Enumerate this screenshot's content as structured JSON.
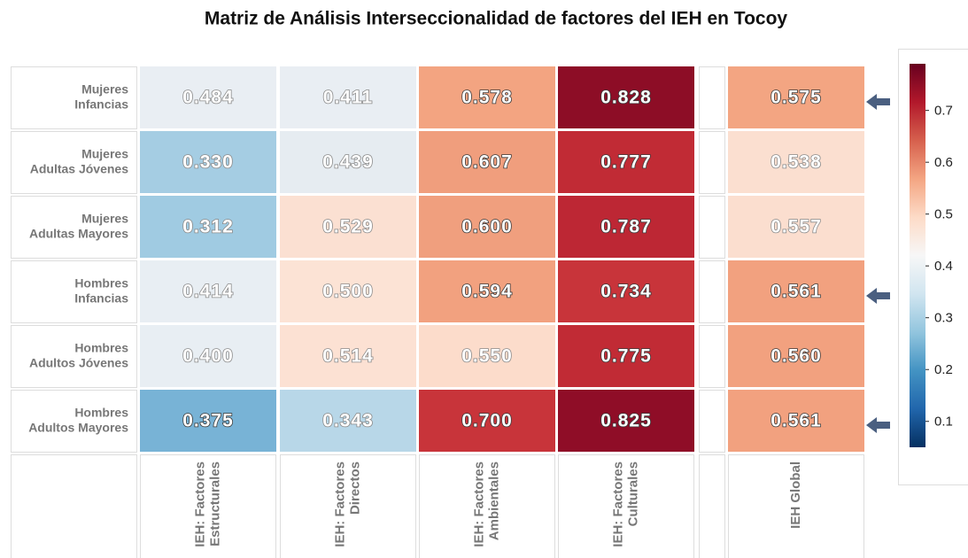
{
  "chart_data": {
    "type": "heatmap",
    "title": "Matriz de Análisis Interseccionalidad de factores del IEH en Tocoy",
    "rows": [
      [
        "Mujeres",
        "Infancias"
      ],
      [
        "Mujeres",
        "Adultas Jóvenes"
      ],
      [
        "Mujeres",
        "Adultas Mayores"
      ],
      [
        "Hombres",
        "Infancias"
      ],
      [
        "Hombres",
        "Adultos Jóvenes"
      ],
      [
        "Hombres",
        "Adultos Mayores"
      ]
    ],
    "columns": [
      [
        "IEH: Factores",
        "Estructurales"
      ],
      [
        "IEH: Factores",
        "Directos"
      ],
      [
        "IEH: Factores",
        "Ambientales"
      ],
      [
        "IEH: Factores",
        "Culturales"
      ],
      [
        "IEH Global"
      ]
    ],
    "values": [
      [
        0.484,
        0.411,
        0.578,
        0.828,
        0.575
      ],
      [
        0.33,
        0.439,
        0.607,
        0.777,
        0.538
      ],
      [
        0.312,
        0.529,
        0.6,
        0.787,
        0.557
      ],
      [
        0.414,
        0.5,
        0.594,
        0.734,
        0.561
      ],
      [
        0.4,
        0.514,
        0.55,
        0.775,
        0.56
      ],
      [
        0.375,
        0.343,
        0.7,
        0.825,
        0.561
      ]
    ],
    "value_labels": [
      [
        "0.484",
        "0.411",
        "0.578",
        "0.828",
        "0.575"
      ],
      [
        "0.330",
        "0.439",
        "0.607",
        "0.777",
        "0.538"
      ],
      [
        "0.312",
        "0.529",
        "0.600",
        "0.787",
        "0.557"
      ],
      [
        "0.414",
        "0.500",
        "0.594",
        "0.734",
        "0.561"
      ],
      [
        "0.400",
        "0.514",
        "0.550",
        "0.775",
        "0.560"
      ],
      [
        "0.375",
        "0.343",
        "0.700",
        "0.825",
        "0.561"
      ]
    ],
    "colors": [
      [
        "#e9eef3",
        "#e9eef3",
        "#f3a481",
        "#8d0d26",
        "#f3a582"
      ],
      [
        "#a5cde3",
        "#e6ecf1",
        "#f09e7d",
        "#c12b35",
        "#fbdfd0"
      ],
      [
        "#a0cbe2",
        "#fbe0d2",
        "#f09f7e",
        "#bd2734",
        "#fbdecf"
      ],
      [
        "#e8eef3",
        "#fce3d5",
        "#f2a17f",
        "#c8343a",
        "#f2a17f"
      ],
      [
        "#e8eef3",
        "#fce1d3",
        "#fcdccb",
        "#c12b35",
        "#f2a17f"
      ],
      [
        "#78b3d6",
        "#b8d7e8",
        "#c8343a",
        "#8f0d27",
        "#f2a17f"
      ]
    ],
    "colorscale": [
      "#053061",
      "#2166ac",
      "#4393c3",
      "#92c5de",
      "#d1e5f0",
      "#f7f7f7",
      "#fddbc7",
      "#f4a582",
      "#d6604d",
      "#b2182b",
      "#67001f"
    ],
    "clim": [
      0.05,
      0.79
    ],
    "cticks": [
      0.1,
      0.2,
      0.3,
      0.4,
      0.5,
      0.6,
      0.7
    ]
  }
}
